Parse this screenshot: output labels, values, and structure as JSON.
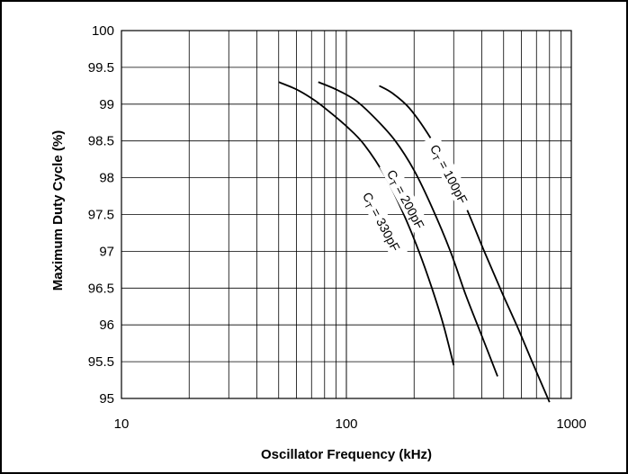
{
  "chart_data": {
    "type": "line",
    "title": "",
    "xlabel": "Oscillator  Frequency  (kHz)",
    "ylabel": "Maximum Duty Cycle  (%)",
    "x_scale": "log",
    "xlim": [
      10,
      1000
    ],
    "ylim": [
      95,
      100
    ],
    "x_ticks": [
      10,
      100,
      1000
    ],
    "x_tick_labels": [
      "10",
      "100",
      "1000"
    ],
    "y_ticks": [
      95,
      95.5,
      96,
      96.5,
      97,
      97.5,
      98,
      98.5,
      99,
      99.5,
      100
    ],
    "y_tick_labels": [
      "95",
      "95.5",
      "96",
      "96.5",
      "97",
      "97.5",
      "98",
      "98.5",
      "99",
      "99.5",
      "100"
    ],
    "grid": true,
    "series": [
      {
        "name": "CT = 330pF",
        "label_main": "C",
        "label_sub": "T",
        "label_rest": " = 330pF",
        "x": [
          50,
          60,
          70,
          80,
          100,
          120,
          150,
          180,
          210,
          240,
          270,
          300
        ],
        "y": [
          99.3,
          99.2,
          99.08,
          98.95,
          98.7,
          98.45,
          98.0,
          97.5,
          97.0,
          96.5,
          96.0,
          95.45
        ]
      },
      {
        "name": "CT = 200pF",
        "label_main": "C",
        "label_sub": "T",
        "label_rest": " = 200pF",
        "x": [
          75,
          90,
          110,
          135,
          165,
          200,
          240,
          290,
          340,
          400,
          470
        ],
        "y": [
          99.3,
          99.2,
          99.05,
          98.8,
          98.5,
          98.1,
          97.6,
          97.0,
          96.4,
          95.85,
          95.3
        ]
      },
      {
        "name": "CT = 100pF",
        "label_main": "C",
        "label_sub": "T",
        "label_rest": " = 100pF",
        "x": [
          140,
          160,
          190,
          230,
          280,
          340,
          410,
          490,
          580,
          680,
          800
        ],
        "y": [
          99.25,
          99.15,
          98.95,
          98.6,
          98.15,
          97.6,
          97.0,
          96.45,
          95.95,
          95.45,
          94.95
        ]
      }
    ]
  }
}
